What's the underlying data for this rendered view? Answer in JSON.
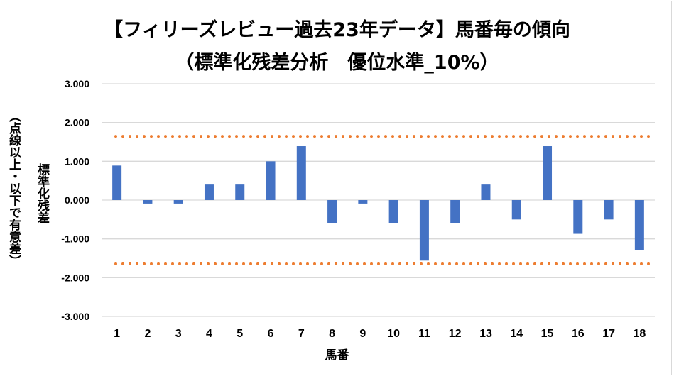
{
  "chart_data": {
    "type": "bar",
    "title": "【フィリーズレビュー過去23年データ】馬番毎の傾向",
    "subtitle": "（標準化残差分析　優位水準_10%）",
    "xlabel": "馬番",
    "ylabel": "標準化残差",
    "ylabel2": "（点線以上・以下で有意差）",
    "categories": [
      "1",
      "2",
      "3",
      "4",
      "5",
      "6",
      "7",
      "8",
      "9",
      "10",
      "11",
      "12",
      "13",
      "14",
      "15",
      "16",
      "17",
      "18"
    ],
    "values": [
      0.89,
      -0.09,
      -0.09,
      0.4,
      0.4,
      1.0,
      1.39,
      -0.59,
      -0.09,
      -0.59,
      -1.56,
      -0.59,
      0.4,
      -0.5,
      1.39,
      -0.87,
      -0.5,
      -1.29
    ],
    "ylim": [
      -3,
      3
    ],
    "yticks": [
      "3.000",
      "2.000",
      "1.000",
      "0.000",
      "-1.000",
      "-2.000",
      "-3.000"
    ],
    "thresholds": [
      1.645,
      -1.645
    ],
    "grid": true,
    "colors": {
      "bar": "#4472c4",
      "threshold": "#ed7d31",
      "grid": "#d9d9d9"
    }
  }
}
